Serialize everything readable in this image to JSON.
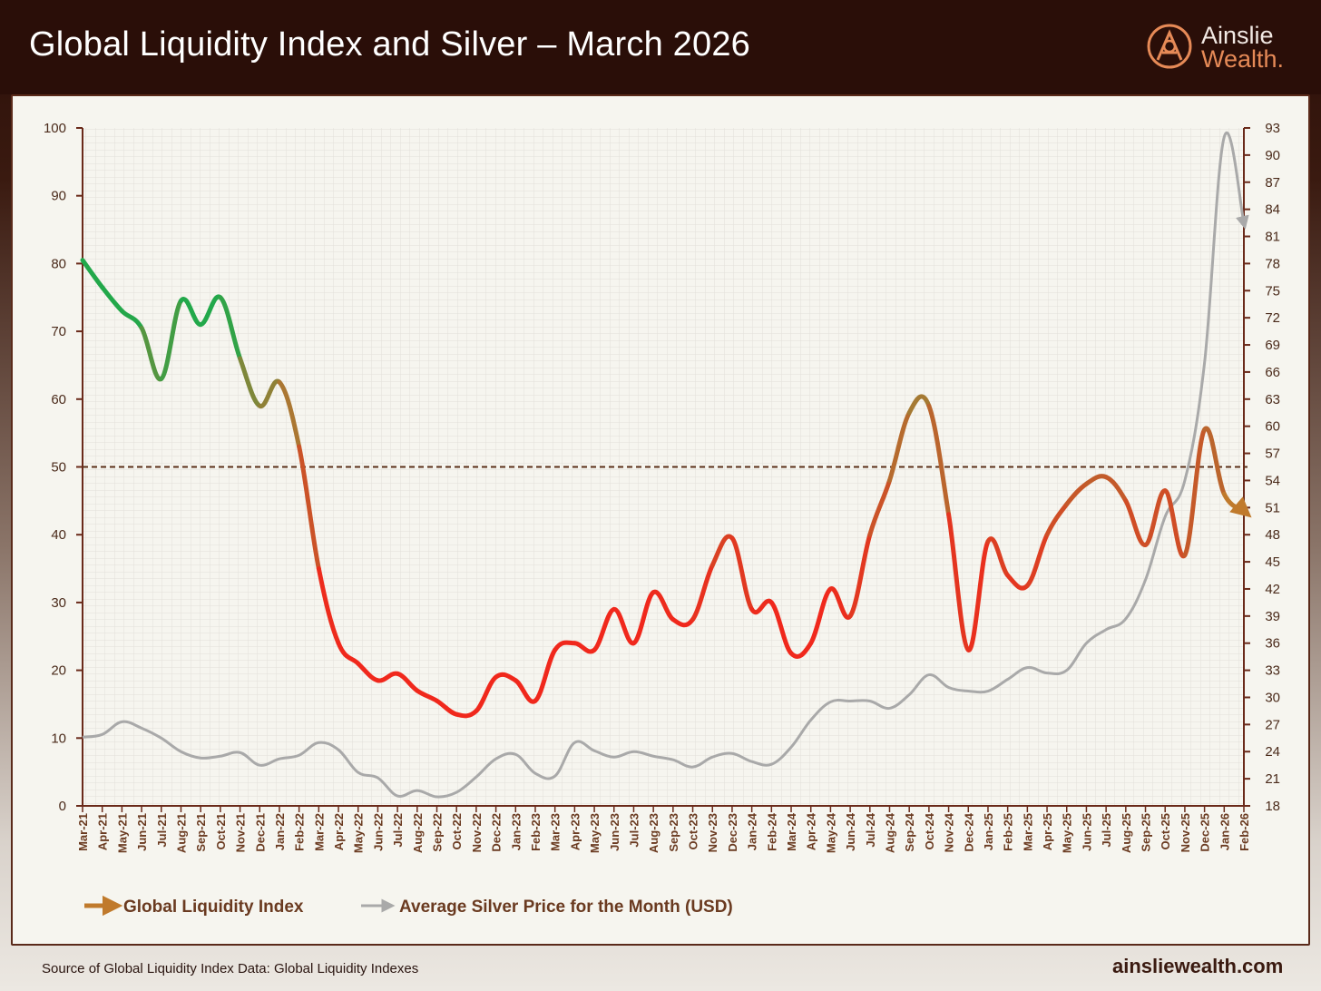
{
  "header": {
    "title": "Global Liquidity Index and Silver – March 2026",
    "logo_line1": "Ainslie",
    "logo_line2": "Wealth."
  },
  "footer": {
    "source": "Source of Global Liquidity Index Data: Global Liquidity Indexes",
    "website": "ainsliewealth.com"
  },
  "colors": {
    "header_bg": "#2a0e08",
    "gli_green": "#22a84a",
    "gli_red": "#f0281c",
    "gli_end": "#c07a2c",
    "silver": "#a9a9a9",
    "axis": "#6a2a1a",
    "reference_line": "#5a3018"
  },
  "chart_data": {
    "type": "line",
    "title": "Global Liquidity Index and Silver – March 2026",
    "categories": [
      "Mar-21",
      "Apr-21",
      "May-21",
      "Jun-21",
      "Jul-21",
      "Aug-21",
      "Sep-21",
      "Oct-21",
      "Nov-21",
      "Dec-21",
      "Jan-22",
      "Feb-22",
      "Mar-22",
      "Apr-22",
      "May-22",
      "Jun-22",
      "Jul-22",
      "Aug-22",
      "Sep-22",
      "Oct-22",
      "Nov-22",
      "Dec-22",
      "Jan-23",
      "Feb-23",
      "Mar-23",
      "Apr-23",
      "May-23",
      "Jun-23",
      "Jul-23",
      "Aug-23",
      "Sep-23",
      "Oct-23",
      "Nov-23",
      "Dec-23",
      "Jan-24",
      "Feb-24",
      "Mar-24",
      "Apr-24",
      "May-24",
      "Jun-24",
      "Jul-24",
      "Aug-24",
      "Sep-24",
      "Oct-24",
      "Nov-24",
      "Dec-24",
      "Jan-25",
      "Feb-25",
      "Mar-25",
      "Apr-25",
      "May-25",
      "Jun-25",
      "Jul-25",
      "Aug-25",
      "Sep-25",
      "Oct-25",
      "Nov-25",
      "Dec-25",
      "Jan-26",
      "Feb-26"
    ],
    "yleft": {
      "min": 0,
      "max": 100,
      "ticks": [
        0,
        10,
        20,
        30,
        40,
        50,
        60,
        70,
        80,
        90,
        100
      ]
    },
    "yright": {
      "min": 18,
      "max": 93,
      "ticks": [
        18,
        21,
        24,
        27,
        30,
        33,
        36,
        39,
        42,
        45,
        48,
        51,
        54,
        57,
        60,
        63,
        66,
        69,
        72,
        75,
        78,
        81,
        84,
        87,
        90,
        93
      ]
    },
    "reference_line": 50,
    "series": [
      {
        "name": "Global Liquidity Index",
        "axis": "left",
        "values": [
          80.5,
          76.5,
          73,
          70.5,
          63,
          74.5,
          71,
          75,
          66,
          59,
          62.5,
          53,
          35,
          24,
          21,
          18.5,
          19.5,
          17,
          15.5,
          13.5,
          14,
          19,
          18.5,
          15.5,
          23,
          24,
          23,
          29,
          24,
          31.5,
          27.5,
          27.5,
          35.5,
          39.5,
          29,
          30,
          22.5,
          24,
          32,
          28,
          40,
          48,
          58,
          59,
          43,
          23,
          39,
          34,
          32.5,
          40,
          44.5,
          47.5,
          48.5,
          45,
          38.5,
          46.5,
          37,
          55.5,
          46,
          43.5
        ]
      },
      {
        "name": "Average Silver Price for the Month (USD)",
        "axis": "right",
        "values": [
          25.6,
          25.9,
          27.3,
          26.6,
          25.5,
          24.0,
          23.3,
          23.5,
          23.9,
          22.5,
          23.2,
          23.6,
          25.0,
          24.2,
          21.7,
          21.1,
          19.1,
          19.7,
          19.0,
          19.5,
          21.2,
          23.2,
          23.7,
          21.6,
          21.3,
          25.0,
          24.1,
          23.4,
          24.0,
          23.5,
          23.1,
          22.3,
          23.4,
          23.8,
          22.9,
          22.6,
          24.5,
          27.5,
          29.5,
          29.6,
          29.6,
          28.8,
          30.3,
          32.5,
          31.1,
          30.7,
          30.7,
          32.0,
          33.3,
          32.7,
          33.0,
          36.0,
          37.5,
          38.7,
          43.0,
          50.0,
          54.0,
          67.0,
          92.0,
          82.5
        ]
      }
    ],
    "legend": [
      "Global Liquidity Index",
      "Average Silver Price for the Month (USD)"
    ]
  }
}
